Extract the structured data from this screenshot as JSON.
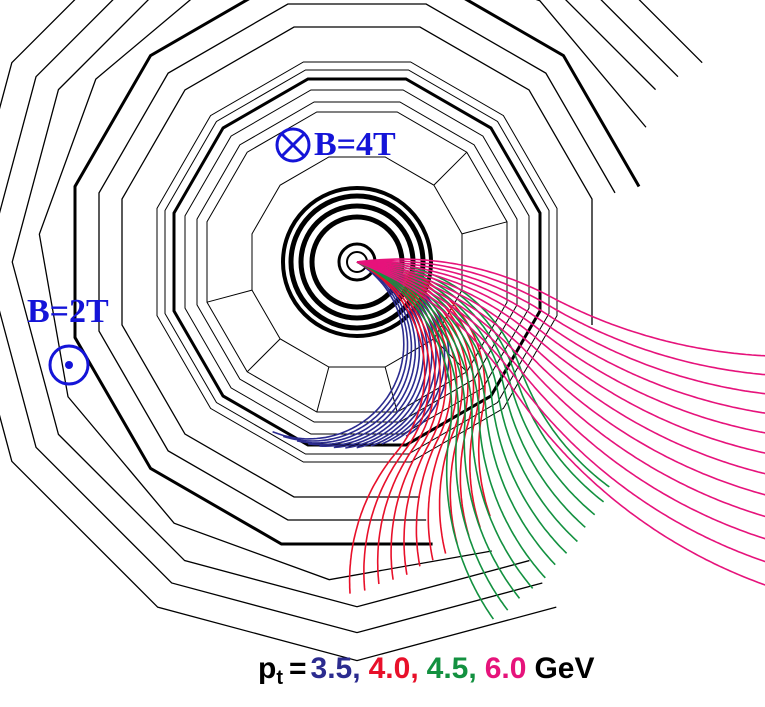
{
  "annotations": {
    "inner_field": "B=4T",
    "outer_field": "B=2T"
  },
  "pt_label": {
    "symbol": "p",
    "subscript": "t",
    "equals": "=",
    "separator": ",",
    "unit": "GeV",
    "values": [
      {
        "text": "3.5",
        "color": "#2b2b8f"
      },
      {
        "text": "4.0",
        "color": "#e8102a"
      },
      {
        "text": "4.5",
        "color": "#139140"
      },
      {
        "text": "6.0",
        "color": "#e6137b"
      }
    ]
  }
}
